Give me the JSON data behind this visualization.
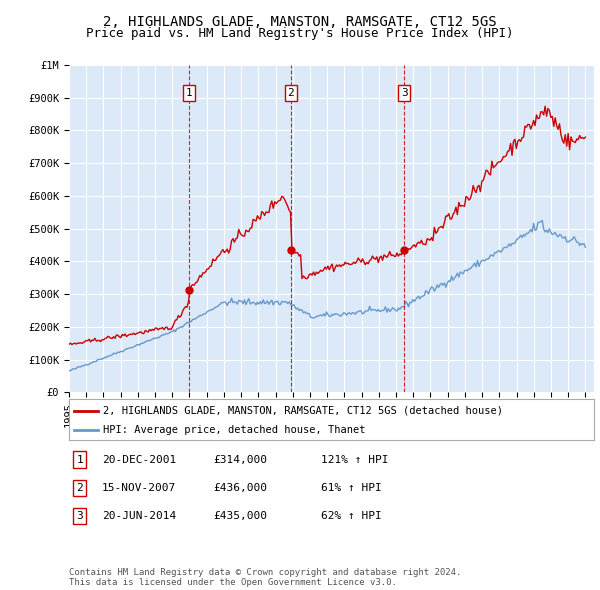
{
  "title": "2, HIGHLANDS GLADE, MANSTON, RAMSGATE, CT12 5GS",
  "subtitle": "Price paid vs. HM Land Registry's House Price Index (HPI)",
  "footer": "Contains HM Land Registry data © Crown copyright and database right 2024.\nThis data is licensed under the Open Government Licence v3.0.",
  "legend_line1": "2, HIGHLANDS GLADE, MANSTON, RAMSGATE, CT12 5GS (detached house)",
  "legend_line2": "HPI: Average price, detached house, Thanet",
  "transactions": [
    {
      "label": "1",
      "date": "20-DEC-2001",
      "price": 314000,
      "pct": "121% ↑ HPI",
      "x_year": 2001.97
    },
    {
      "label": "2",
      "date": "15-NOV-2007",
      "price": 436000,
      "pct": "61% ↑ HPI",
      "x_year": 2007.88
    },
    {
      "label": "3",
      "date": "20-JUN-2014",
      "price": 435000,
      "pct": "62% ↑ HPI",
      "x_year": 2014.47
    }
  ],
  "ylim": [
    0,
    1000000
  ],
  "xlim": [
    1995,
    2025.5
  ],
  "plot_background": "#dce9f8",
  "red_line_color": "#cc0000",
  "blue_line_color": "#6699cc",
  "grid_color": "#ffffff",
  "title_fontsize": 10,
  "subtitle_fontsize": 9,
  "tick_fontsize": 7.5
}
